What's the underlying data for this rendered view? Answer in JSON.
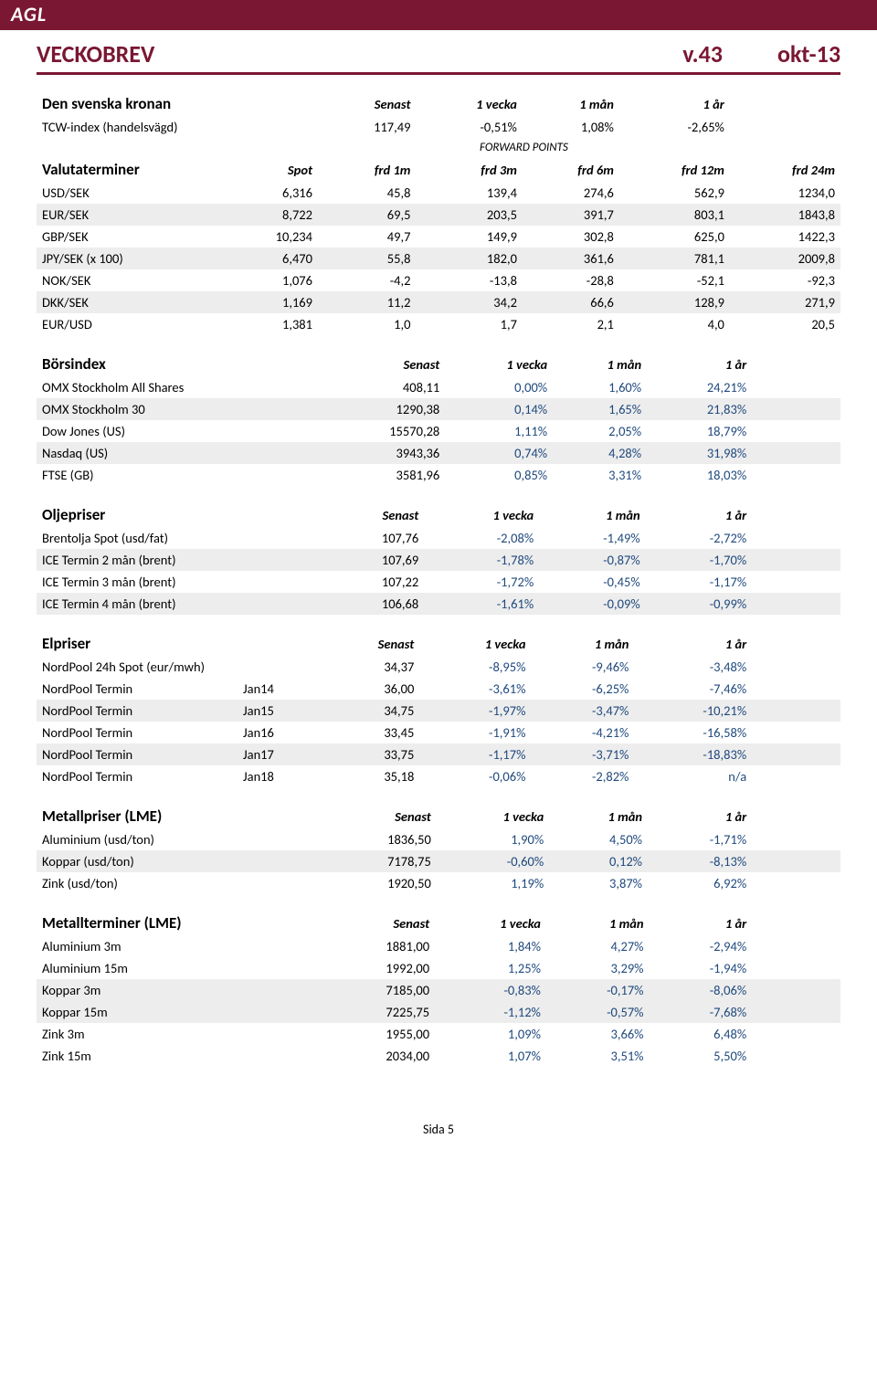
{
  "brand": "AGL",
  "colors": {
    "accent": "#7a1733",
    "blue": "#1f497d",
    "shade": "#ededed",
    "white": "#ffffff",
    "black": "#000000"
  },
  "typography": {
    "base_fontsize": 14.5,
    "title_fontsize": 26,
    "section_fontsize": 17
  },
  "title": {
    "left": "VECKOBREV",
    "mid": "v.43",
    "right": "okt-13"
  },
  "std_headers": {
    "senast": "Senast",
    "v1": "1 vecka",
    "m1": "1 mån",
    "y1": "1 år"
  },
  "currency": {
    "title": "Den svenska kronan",
    "tcw": {
      "label": "TCW-index (handelsvägd)",
      "senast": "117,49",
      "v1": "-0,51%",
      "m1": "1,08%",
      "y1": "-2,65%"
    },
    "fwd_title": "FORWARD POINTS",
    "fwd_headers": {
      "title": "Valutaterminer",
      "spot": "Spot",
      "f1": "frd 1m",
      "f3": "frd 3m",
      "f6": "frd 6m",
      "f12": "frd 12m",
      "f24": "frd 24m"
    },
    "rows": [
      {
        "label": "USD/SEK",
        "c": [
          "6,316",
          "45,8",
          "139,4",
          "274,6",
          "562,9",
          "1234,0"
        ],
        "shade": false
      },
      {
        "label": "EUR/SEK",
        "c": [
          "8,722",
          "69,5",
          "203,5",
          "391,7",
          "803,1",
          "1843,8"
        ],
        "shade": true
      },
      {
        "label": "GBP/SEK",
        "c": [
          "10,234",
          "49,7",
          "149,9",
          "302,8",
          "625,0",
          "1422,3"
        ],
        "shade": false
      },
      {
        "label": "JPY/SEK (x 100)",
        "c": [
          "6,470",
          "55,8",
          "182,0",
          "361,6",
          "781,1",
          "2009,8"
        ],
        "shade": true
      },
      {
        "label": "NOK/SEK",
        "c": [
          "1,076",
          "-4,2",
          "-13,8",
          "-28,8",
          "-52,1",
          "-92,3"
        ],
        "shade": false
      },
      {
        "label": "DKK/SEK",
        "c": [
          "1,169",
          "11,2",
          "34,2",
          "66,6",
          "128,9",
          "271,9"
        ],
        "shade": true
      },
      {
        "label": "EUR/USD",
        "c": [
          "1,381",
          "1,0",
          "1,7",
          "2,1",
          "4,0",
          "20,5"
        ],
        "shade": false
      }
    ]
  },
  "sections": [
    {
      "title": "Börsindex",
      "rows": [
        {
          "label": "OMX Stockholm All Shares",
          "senast": "408,11",
          "v1": "0,00%",
          "m1": "1,60%",
          "y1": "24,21%",
          "shade": false
        },
        {
          "label": "OMX Stockholm 30",
          "senast": "1290,38",
          "v1": "0,14%",
          "m1": "1,65%",
          "y1": "21,83%",
          "shade": true
        },
        {
          "label": "Dow Jones (US)",
          "senast": "15570,28",
          "v1": "1,11%",
          "m1": "2,05%",
          "y1": "18,79%",
          "shade": false
        },
        {
          "label": "Nasdaq (US)",
          "senast": "3943,36",
          "v1": "0,74%",
          "m1": "4,28%",
          "y1": "31,98%",
          "shade": true
        },
        {
          "label": "FTSE (GB)",
          "senast": "3581,96",
          "v1": "0,85%",
          "m1": "3,31%",
          "y1": "18,03%",
          "shade": false
        }
      ]
    },
    {
      "title": "Oljepriser",
      "rows": [
        {
          "label": "Brentolja Spot (usd/fat)",
          "senast": "107,76",
          "v1": "-2,08%",
          "m1": "-1,49%",
          "y1": "-2,72%",
          "shade": false
        },
        {
          "label": "ICE Termin 2 mån (brent)",
          "senast": "107,69",
          "v1": "-1,78%",
          "m1": "-0,87%",
          "y1": "-1,70%",
          "shade": true
        },
        {
          "label": "ICE Termin 3 mån (brent)",
          "senast": "107,22",
          "v1": "-1,72%",
          "m1": "-0,45%",
          "y1": "-1,17%",
          "shade": false
        },
        {
          "label": "ICE Termin 4 mån (brent)",
          "senast": "106,68",
          "v1": "-1,61%",
          "m1": "-0,09%",
          "y1": "-0,99%",
          "shade": true
        }
      ]
    },
    {
      "title": "Elpriser",
      "rows": [
        {
          "label": "NordPool 24h Spot (eur/mwh)",
          "sub": "",
          "senast": "34,37",
          "v1": "-8,95%",
          "m1": "-9,46%",
          "y1": "-3,48%",
          "shade": false
        },
        {
          "label": "NordPool Termin",
          "sub": "Jan14",
          "senast": "36,00",
          "v1": "-3,61%",
          "m1": "-6,25%",
          "y1": "-7,46%",
          "shade": false
        },
        {
          "label": "NordPool Termin",
          "sub": "Jan15",
          "senast": "34,75",
          "v1": "-1,97%",
          "m1": "-3,47%",
          "y1": "-10,21%",
          "shade": true
        },
        {
          "label": "NordPool Termin",
          "sub": "Jan16",
          "senast": "33,45",
          "v1": "-1,91%",
          "m1": "-4,21%",
          "y1": "-16,58%",
          "shade": false
        },
        {
          "label": "NordPool Termin",
          "sub": "Jan17",
          "senast": "33,75",
          "v1": "-1,17%",
          "m1": "-3,71%",
          "y1": "-18,83%",
          "shade": true
        },
        {
          "label": "NordPool Termin",
          "sub": "Jan18",
          "senast": "35,18",
          "v1": "-0,06%",
          "m1": "-2,82%",
          "y1": "n/a",
          "shade": false
        }
      ]
    },
    {
      "title": "Metallpriser (LME)",
      "rows": [
        {
          "label": "Aluminium (usd/ton)",
          "senast": "1836,50",
          "v1": "1,90%",
          "m1": "4,50%",
          "y1": "-1,71%",
          "shade": false
        },
        {
          "label": "Koppar (usd/ton)",
          "senast": "7178,75",
          "v1": "-0,60%",
          "m1": "0,12%",
          "y1": "-8,13%",
          "shade": true
        },
        {
          "label": "Zink (usd/ton)",
          "senast": "1920,50",
          "v1": "1,19%",
          "m1": "3,87%",
          "y1": "6,92%",
          "shade": false
        }
      ]
    },
    {
      "title": "Metallterminer (LME)",
      "rows": [
        {
          "label": "Aluminium 3m",
          "senast": "1881,00",
          "v1": "1,84%",
          "m1": "4,27%",
          "y1": "-2,94%",
          "shade": false
        },
        {
          "label": "Aluminium 15m",
          "senast": "1992,00",
          "v1": "1,25%",
          "m1": "3,29%",
          "y1": "-1,94%",
          "shade": false
        },
        {
          "label": "Koppar 3m",
          "senast": "7185,00",
          "v1": "-0,83%",
          "m1": "-0,17%",
          "y1": "-8,06%",
          "shade": true
        },
        {
          "label": "Koppar 15m",
          "senast": "7225,75",
          "v1": "-1,12%",
          "m1": "-0,57%",
          "y1": "-7,68%",
          "shade": true
        },
        {
          "label": "Zink 3m",
          "senast": "1955,00",
          "v1": "1,09%",
          "m1": "3,66%",
          "y1": "6,48%",
          "shade": false
        },
        {
          "label": "Zink 15m",
          "senast": "2034,00",
          "v1": "1,07%",
          "m1": "3,51%",
          "y1": "5,50%",
          "shade": false
        }
      ]
    }
  ],
  "footer": "Sida 5"
}
